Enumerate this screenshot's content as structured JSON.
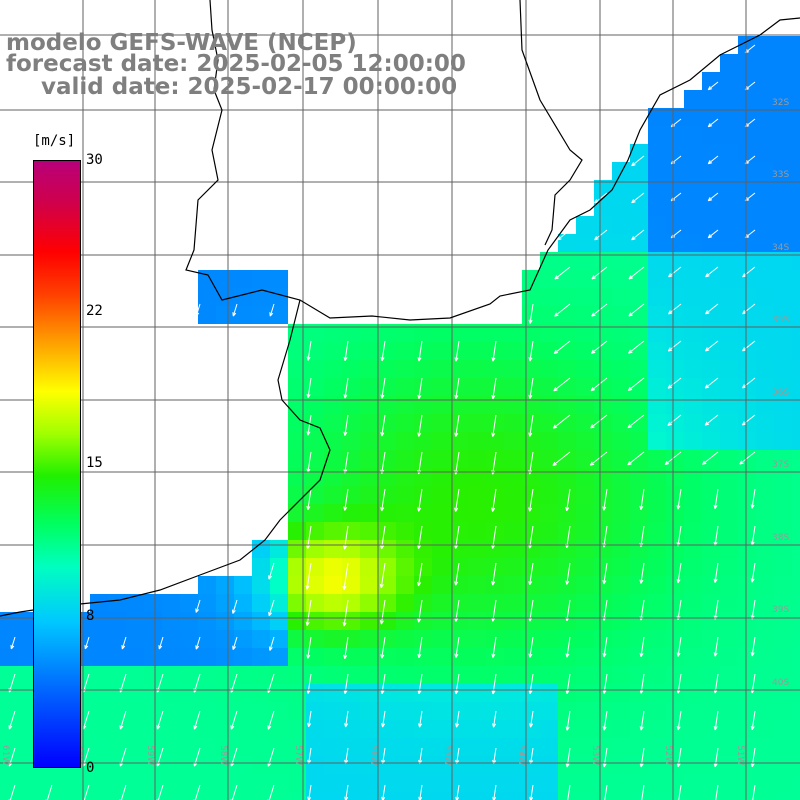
{
  "title": {
    "line1": "modelo GEFS-WAVE (NCEP)",
    "line2": "forecast date: 2025-02-05 12:00:00",
    "line3": "valid date: 2025-02-17 00:00:00"
  },
  "colorbar": {
    "unit": "[m/s]",
    "ticks": [
      "30",
      "22",
      "15",
      "8",
      "0"
    ],
    "tick_values": [
      30,
      22,
      15,
      8,
      0
    ],
    "range": [
      0,
      30
    ]
  },
  "lon_labels": [
    "61W",
    "60W",
    "59W",
    "58W",
    "57W",
    "56W",
    "55W",
    "54W",
    "53W",
    "52W",
    "51W"
  ],
  "lat_labels": [
    "32S",
    "33S",
    "34S",
    "35S",
    "36S",
    "37S",
    "38S",
    "39S",
    "40S"
  ],
  "colors": {
    "land": "#ffffff",
    "coast": "#000000",
    "grid": "#606060",
    "arrows": "#ffffff",
    "title": "#7f7f7f"
  }
}
